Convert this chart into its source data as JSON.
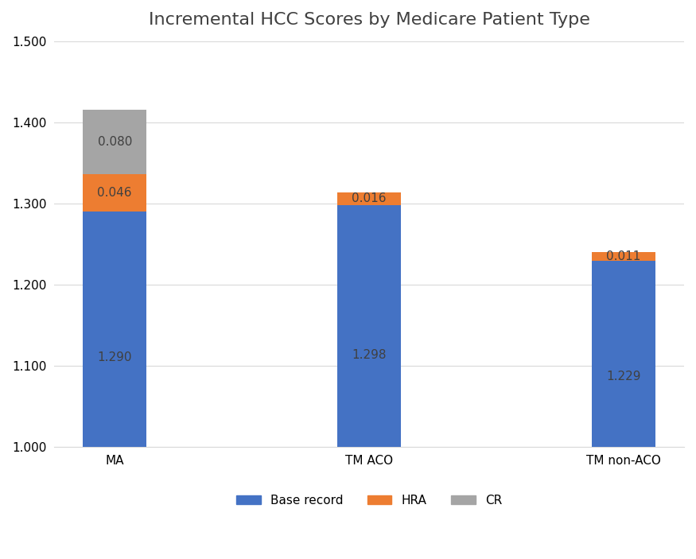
{
  "title": "Incremental HCC Scores by Medicare Patient Type",
  "categories": [
    "MA",
    "TM ACO",
    "TM non-ACO"
  ],
  "base_values": [
    1.29,
    1.298,
    1.229
  ],
  "hra_values": [
    0.046,
    0.016,
    0.011
  ],
  "cr_values": [
    0.08,
    0.0,
    0.0
  ],
  "base_color": "#4472C4",
  "hra_color": "#ED7D31",
  "cr_color": "#A5A5A5",
  "ylim_min": 1.0,
  "ylim_max": 1.5,
  "yticks": [
    1.0,
    1.1,
    1.2,
    1.3,
    1.4,
    1.5
  ],
  "background_color": "#FFFFFF",
  "title_fontsize": 16,
  "label_fontsize": 11,
  "tick_fontsize": 11,
  "legend_fontsize": 11,
  "bar_width": 0.25
}
